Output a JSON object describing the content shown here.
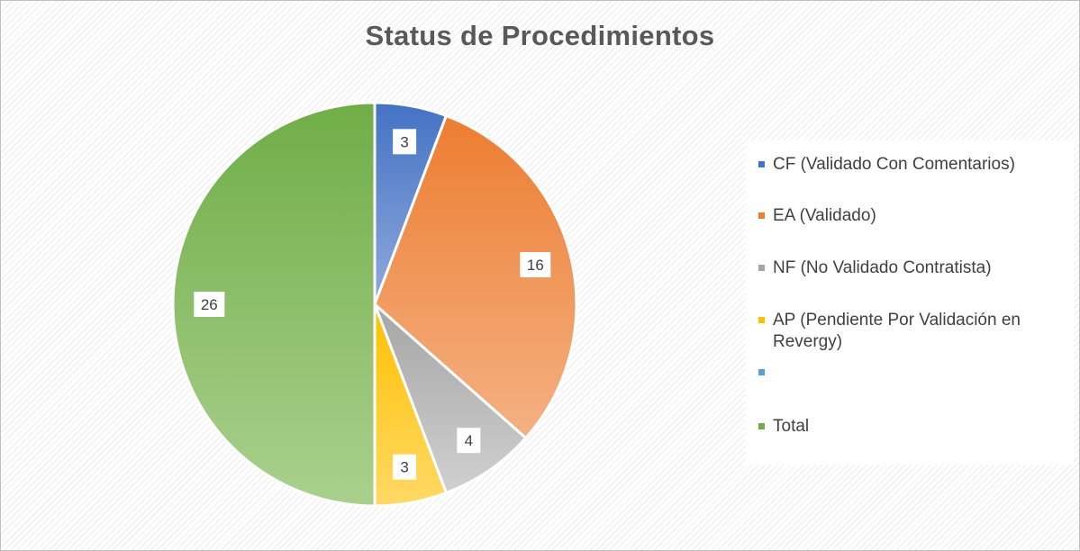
{
  "chart_data": {
    "type": "pie",
    "title": "Status de Procedimientos",
    "slices": [
      {
        "label": "CF (Validado Con Comentarios)",
        "value": 3,
        "data_label": "3",
        "color": "#4472C4",
        "color_light": "#8FAADC"
      },
      {
        "label": "EA (Validado)",
        "value": 16,
        "data_label": "16",
        "color": "#ED7D31",
        "color_light": "#F4B183"
      },
      {
        "label": "NF (No Validado Contratista)",
        "value": 4,
        "data_label": "4",
        "color": "#A5A5A5",
        "color_light": "#D0D0D0"
      },
      {
        "label": "AP (Pendiente Por Validación en Revergy)",
        "value": 3,
        "data_label": "3",
        "color": "#FFC000",
        "color_light": "#FFD966"
      },
      {
        "label": "",
        "value": 0,
        "data_label": "",
        "color": "#5B9BD5",
        "color_light": "#9DC3E6"
      },
      {
        "label": "Total",
        "value": 26,
        "data_label": "26",
        "color": "#70AD47",
        "color_light": "#A9D18E"
      }
    ],
    "legend_position": "right"
  }
}
